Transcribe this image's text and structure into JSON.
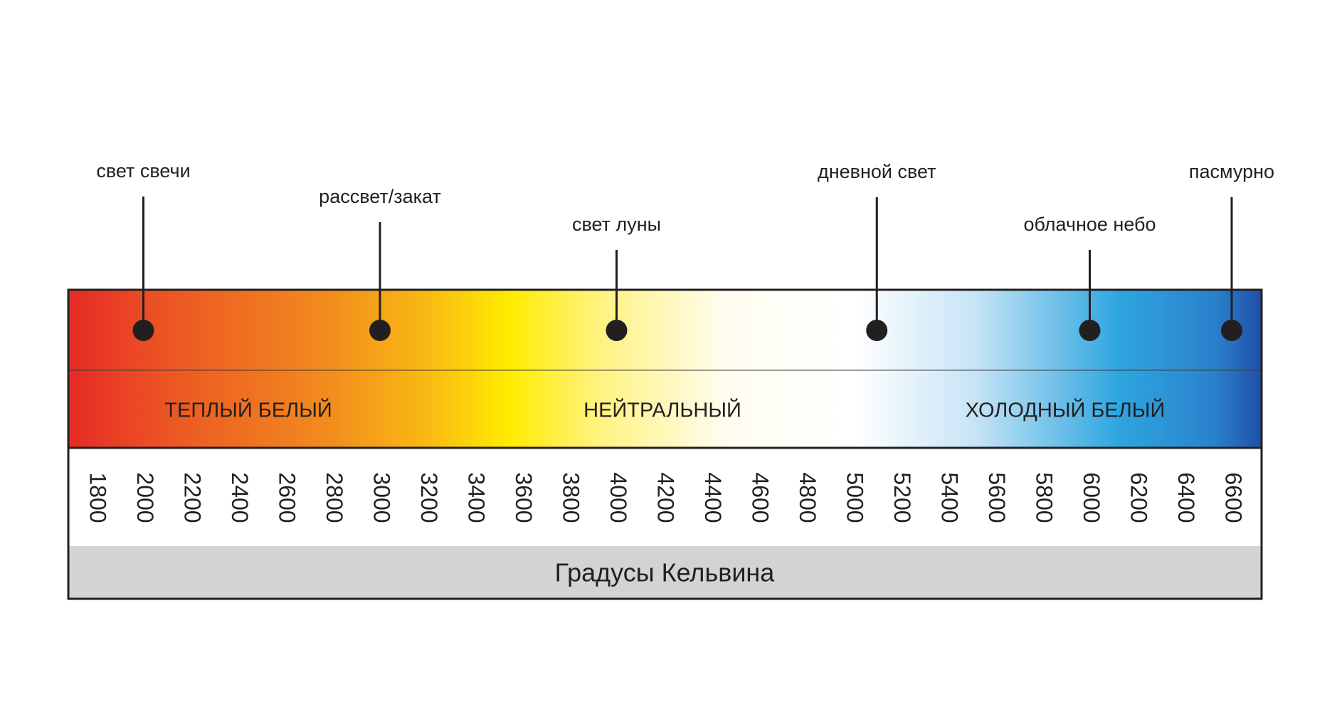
{
  "markers": [
    {
      "label": "свет свечи",
      "value": 2000
    },
    {
      "label": "рассвет/закат",
      "value": 3000
    },
    {
      "label": "свет луны",
      "value": 4000
    },
    {
      "label": "дневной свет",
      "value": 5100
    },
    {
      "label": "облачное небо",
      "value": 6000
    },
    {
      "label": "пасмурно",
      "value": 6600
    }
  ],
  "zones": [
    "ТЕПЛЫЙ БЕЛЫЙ",
    "НЕЙТРАЛЬНЫЙ",
    "ХОЛОДНЫЙ БЕЛЫЙ"
  ],
  "scale": {
    "ticks": [
      1800,
      2000,
      2200,
      2400,
      2600,
      2800,
      3000,
      3200,
      3400,
      3600,
      3800,
      4000,
      4200,
      4400,
      4600,
      4800,
      5000,
      5200,
      5400,
      5600,
      5800,
      6000,
      6200,
      6400,
      6600
    ],
    "unit_label": "Градусы Кельвина"
  }
}
